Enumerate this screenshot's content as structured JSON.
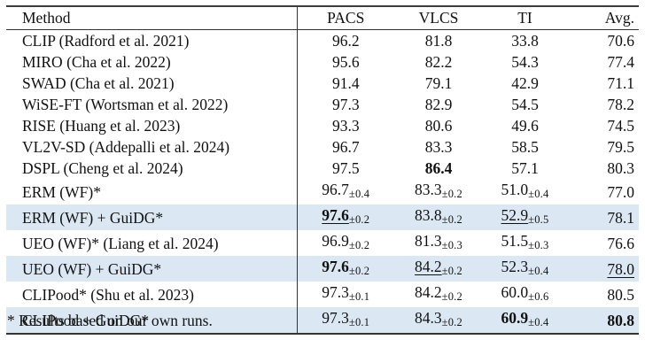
{
  "colors": {
    "highlight_row": "#dbe8f4",
    "rule": "#333333",
    "text": "#111111"
  },
  "table": {
    "columns": [
      "Method",
      "PACS",
      "VLCS",
      "TI",
      "Avg."
    ],
    "rows": [
      {
        "method": "CLIP (Radford et al. 2021)",
        "highlight": false,
        "cells": [
          {
            "main": "96.2"
          },
          {
            "main": "81.8"
          },
          {
            "main": "33.8"
          },
          {
            "main": "70.6"
          }
        ]
      },
      {
        "method": "MIRO (Cha et al. 2022)",
        "highlight": false,
        "cells": [
          {
            "main": "95.6"
          },
          {
            "main": "82.2"
          },
          {
            "main": "54.3"
          },
          {
            "main": "77.4"
          }
        ]
      },
      {
        "method": "SWAD (Cha et al. 2021)",
        "highlight": false,
        "cells": [
          {
            "main": "91.4"
          },
          {
            "main": "79.1"
          },
          {
            "main": "42.9"
          },
          {
            "main": "71.1"
          }
        ]
      },
      {
        "method": "WiSE-FT (Wortsman et al. 2022)",
        "highlight": false,
        "cells": [
          {
            "main": "97.3"
          },
          {
            "main": "82.9"
          },
          {
            "main": "54.5"
          },
          {
            "main": "78.2"
          }
        ]
      },
      {
        "method": "RISE (Huang et al. 2023)",
        "highlight": false,
        "cells": [
          {
            "main": "93.3"
          },
          {
            "main": "80.6"
          },
          {
            "main": "49.6"
          },
          {
            "main": "74.5"
          }
        ]
      },
      {
        "method": "VL2V-SD (Addepalli et al. 2024)",
        "highlight": false,
        "cells": [
          {
            "main": "96.7"
          },
          {
            "main": "83.3"
          },
          {
            "main": "58.5"
          },
          {
            "main": "79.5"
          }
        ]
      },
      {
        "method": "DSPL (Cheng et al. 2024)",
        "highlight": false,
        "cells": [
          {
            "main": "97.5"
          },
          {
            "main": "86.4",
            "bold": true
          },
          {
            "main": "57.1"
          },
          {
            "main": "80.3"
          }
        ]
      },
      {
        "method": "ERM (WF)*",
        "highlight": false,
        "cells": [
          {
            "main": "96.7",
            "sub": "±0.4"
          },
          {
            "main": "83.3",
            "sub": "±0.2"
          },
          {
            "main": "51.0",
            "sub": "±0.4"
          },
          {
            "main": "77.0"
          }
        ]
      },
      {
        "method": "ERM (WF) + GuiDG*",
        "highlight": true,
        "cells": [
          {
            "main": "97.6",
            "sub": "±0.2",
            "bold": true,
            "underline": true
          },
          {
            "main": "83.8",
            "sub": "±0.2"
          },
          {
            "main": "52.9",
            "sub": "±0.5",
            "underline": true
          },
          {
            "main": "78.1"
          }
        ]
      },
      {
        "method": "UEO (WF)* (Liang et al. 2024)",
        "highlight": false,
        "cells": [
          {
            "main": "96.9",
            "sub": "±0.2"
          },
          {
            "main": "81.3",
            "sub": "±0.3"
          },
          {
            "main": "51.5",
            "sub": "±0.3"
          },
          {
            "main": "76.6"
          }
        ]
      },
      {
        "method": "UEO (WF) + GuiDG*",
        "highlight": true,
        "cells": [
          {
            "main": "97.6",
            "sub": "±0.2",
            "bold": true
          },
          {
            "main": "84.2",
            "sub": "±0.2",
            "underline": true
          },
          {
            "main": "52.3",
            "sub": "±0.4"
          },
          {
            "main": "78.0",
            "underline": true
          }
        ]
      },
      {
        "method": "CLIPood* (Shu et al. 2023)",
        "highlight": false,
        "cells": [
          {
            "main": "97.3",
            "sub": "±0.1"
          },
          {
            "main": "84.2",
            "sub": "±0.2"
          },
          {
            "main": "60.0",
            "sub": "±0.6"
          },
          {
            "main": "80.5"
          }
        ]
      },
      {
        "method": "CLIPood + GuiDG*",
        "highlight": true,
        "cells": [
          {
            "main": "97.3",
            "sub": "±0.1"
          },
          {
            "main": "84.3",
            "sub": "±0.2"
          },
          {
            "main": "60.9",
            "sub": "±0.4",
            "bold": true
          },
          {
            "main": "80.8",
            "bold": true
          }
        ]
      }
    ]
  },
  "footnote": "* Results based on our own runs."
}
